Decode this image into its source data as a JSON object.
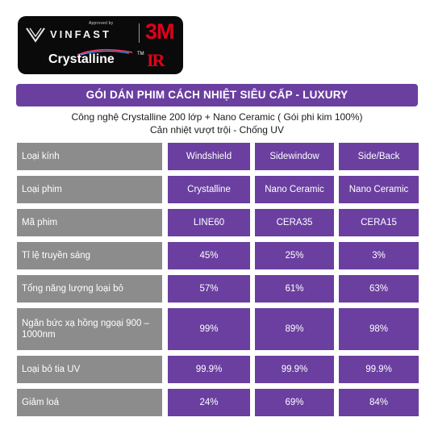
{
  "logo": {
    "approved_by": "Approved by",
    "vinfast": "VINFAST",
    "brand_3m": "3M",
    "crystalline": "Crystalline",
    "tm": "TM",
    "ir": "IR"
  },
  "banner": {
    "title": "GÓI DÁN PHIM CÁCH NHIỆT SIÊU CẤP - LUXURY"
  },
  "subtitle": {
    "line1": "Công nghệ Crystalline 200 lớp + Nano Ceramic ( Gói phi kim 100%)",
    "line2": "Cản nhiệt vượt trội - Chống UV"
  },
  "table": {
    "rows": [
      {
        "label": "Loại kính",
        "values": [
          "Windshield",
          "Sidewindow",
          "Side/Back"
        ]
      },
      {
        "label": "Loại phim",
        "values": [
          "Crystalline",
          "Nano Ceramic",
          "Nano Ceramic"
        ]
      },
      {
        "label": "Mã phim",
        "values": [
          "LINE60",
          "CERA35",
          "CERA15"
        ]
      },
      {
        "label": "Tỉ lệ truyền sáng",
        "values": [
          "45%",
          "25%",
          "3%"
        ]
      },
      {
        "label": "Tổng năng lượng loại bỏ",
        "values": [
          "57%",
          "61%",
          "63%"
        ]
      },
      {
        "label": "Ngăn bức xạ hồng ngoại 900 – 1000nm",
        "values": [
          "99%",
          "89%",
          "98%"
        ]
      },
      {
        "label": "Loại bỏ tia UV",
        "values": [
          "99.9%",
          "99.9%",
          "99.9%"
        ]
      },
      {
        "label": "Giảm loá",
        "values": [
          "24%",
          "69%",
          "84%"
        ]
      }
    ]
  },
  "colors": {
    "purple": "#6a3fa0",
    "gray": "#8c8c8c",
    "logo_bg": "#0a0a0a",
    "brand_red": "#e3001b"
  }
}
